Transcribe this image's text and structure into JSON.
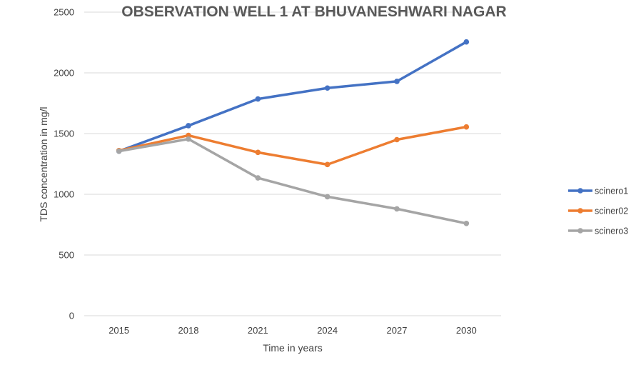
{
  "chart_data": {
    "type": "line",
    "title": "OBSERVATION WELL 1 AT BHUVANESHWARI NAGAR",
    "xlabel": "Time in years",
    "ylabel": "TDS concentration in mg/l",
    "categories": [
      "2015",
      "2018",
      "2021",
      "2024",
      "2027",
      "2030"
    ],
    "ylim": [
      0,
      2500
    ],
    "yticks": [
      "0",
      "500",
      "1000",
      "1500",
      "2000",
      "2500"
    ],
    "grid": true,
    "legend_position": "right",
    "series": [
      {
        "name": "scinero1",
        "color": "#4472c4",
        "values": [
          1355,
          1565,
          1785,
          1875,
          1930,
          2255
        ]
      },
      {
        "name": "sciner02",
        "color": "#ed7d31",
        "values": [
          1360,
          1485,
          1345,
          1245,
          1450,
          1555
        ]
      },
      {
        "name": "scinero3",
        "color": "#a5a5a5",
        "values": [
          1355,
          1455,
          1135,
          980,
          880,
          760
        ]
      }
    ]
  }
}
